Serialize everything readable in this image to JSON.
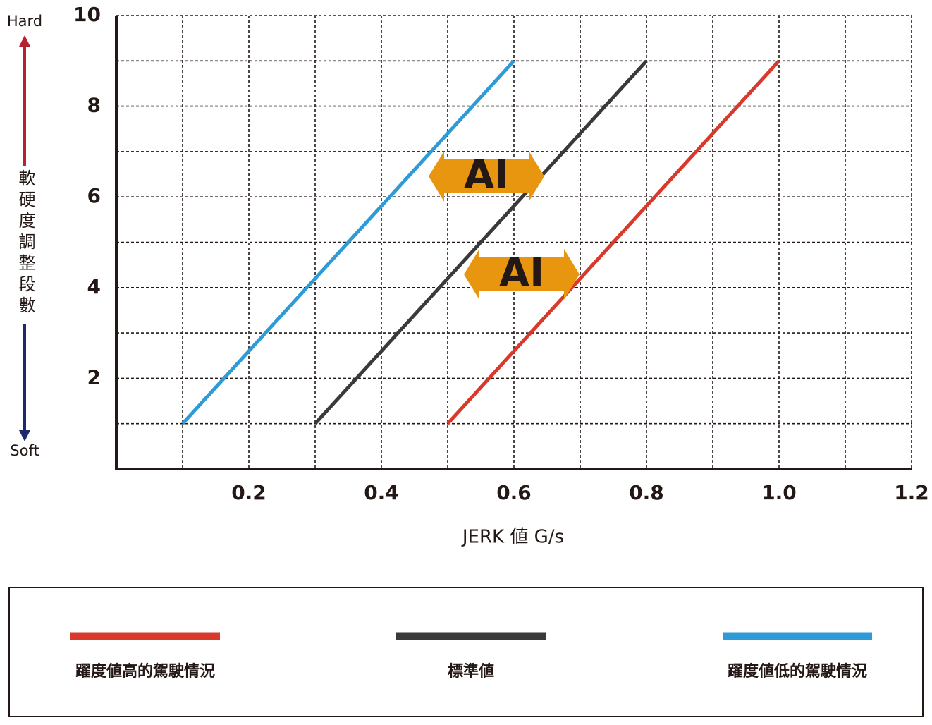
{
  "chart_data": {
    "type": "line",
    "y_label": "軟硬度調整段數",
    "y_label_top": "Hard",
    "y_label_bottom": "Soft",
    "x_label": "JERK 値 G/s",
    "xlim": [
      0,
      1.2
    ],
    "xticks": [
      0.2,
      0.4,
      0.6,
      0.8,
      {
        "value": 1.0,
        "label": "1.0"
      },
      1.2
    ],
    "ylim": [
      0,
      10
    ],
    "yticks": [
      2,
      4,
      6,
      8,
      10
    ],
    "xgrid": [
      0.1,
      0.2,
      0.3,
      0.4,
      0.5,
      0.6,
      0.7,
      0.8,
      0.9,
      1.0,
      1.1,
      1.2
    ],
    "ygrid": [
      1,
      2,
      3,
      4,
      5,
      6,
      7,
      8,
      9,
      10
    ],
    "grid": true,
    "annotations": [
      "AI",
      "AI"
    ],
    "legend": "bottom",
    "series": [
      {
        "name": "躍度値高的駕駛情況",
        "color": "#d9392b",
        "x": [
          0.5,
          1.0
        ],
        "values": [
          1,
          9
        ]
      },
      {
        "name": "標準値",
        "color": "#3a3a3a",
        "x": [
          0.3,
          0.8
        ],
        "values": [
          1,
          9
        ]
      },
      {
        "name": "躍度値低的駕駛情況",
        "color": "#2e9bd6",
        "x": [
          0.1,
          0.6
        ],
        "values": [
          1,
          9
        ]
      }
    ]
  }
}
